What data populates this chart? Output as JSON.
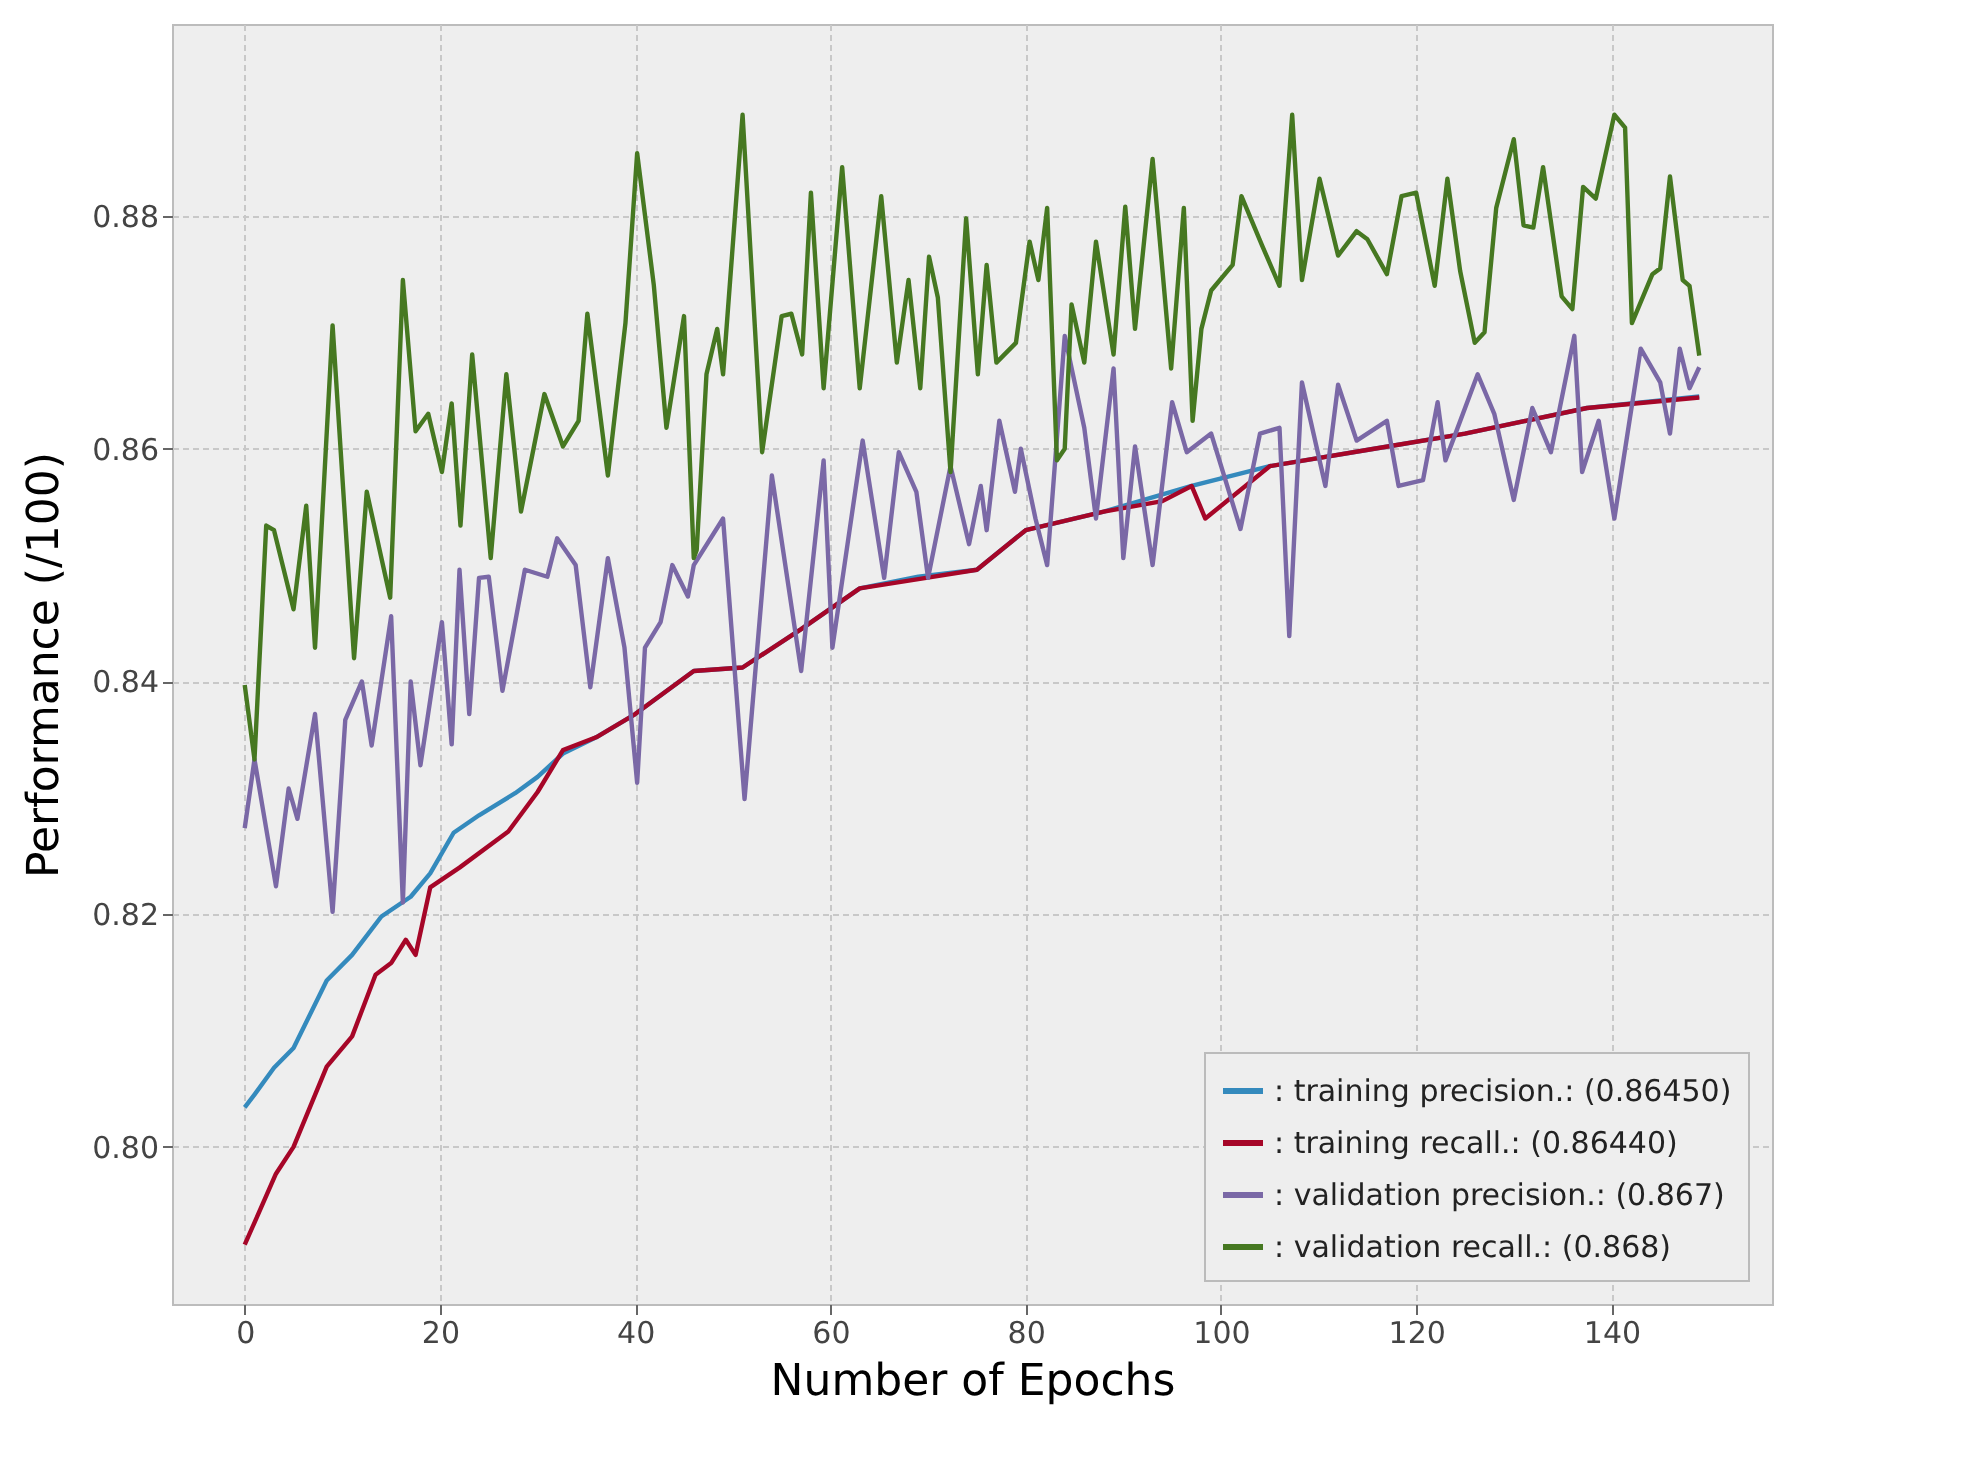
{
  "chart_data": {
    "type": "line",
    "xlabel": "Number of Epochs",
    "ylabel": "Performance (/100)",
    "xlim": [
      -7.45,
      156.45
    ],
    "ylim": [
      0.7865,
      0.8965
    ],
    "xticks": [
      0,
      20,
      40,
      60,
      80,
      100,
      120,
      140
    ],
    "yticks": [
      {
        "value": 0.8,
        "label": "0.80"
      },
      {
        "value": 0.82,
        "label": "0.82"
      },
      {
        "value": 0.84,
        "label": "0.84"
      },
      {
        "value": 0.86,
        "label": "0.86"
      },
      {
        "value": 0.88,
        "label": "0.88"
      }
    ],
    "grid": true,
    "legend": "bottom right",
    "marker": "none",
    "line_style": "solid",
    "series": [
      {
        "name": ": training precision.: (0.86450)",
        "color": "#348abd",
        "x": [
          0,
          1,
          3,
          5,
          8.4,
          11,
          14,
          17,
          19,
          21.4,
          24,
          27.7,
          30,
          32.6,
          36,
          40,
          46,
          51,
          57,
          63,
          69,
          75,
          80,
          88,
          97,
          105,
          115.7,
          125,
          137.5,
          149
        ],
        "values": [
          0.8034,
          0.8045,
          0.8068,
          0.8085,
          0.8143,
          0.8165,
          0.8198,
          0.8215,
          0.8235,
          0.827,
          0.8285,
          0.8304,
          0.8318,
          0.8338,
          0.8352,
          0.8372,
          0.8409,
          0.8412,
          0.8445,
          0.848,
          0.849,
          0.8496,
          0.853,
          0.8546,
          0.8568,
          0.8585,
          0.86,
          0.8613,
          0.8635,
          0.8645
        ]
      },
      {
        "name": ": training recall.: (0.86440)",
        "color": "#a60628",
        "x": [
          0,
          1,
          3.2,
          5,
          8.4,
          11,
          13.4,
          15,
          16.5,
          17.5,
          19,
          22,
          27,
          30,
          32.6,
          36,
          40,
          46,
          51,
          57,
          63,
          69,
          75,
          80,
          88,
          94,
          97,
          98.4,
          105,
          115.7,
          125,
          137.5,
          149
        ],
        "values": [
          0.7916,
          0.7935,
          0.7977,
          0.8,
          0.8069,
          0.8095,
          0.8148,
          0.8158,
          0.8178,
          0.8165,
          0.8223,
          0.824,
          0.8271,
          0.8305,
          0.8341,
          0.8352,
          0.8372,
          0.8409,
          0.8412,
          0.8445,
          0.848,
          0.8488,
          0.8496,
          0.853,
          0.8546,
          0.8555,
          0.8568,
          0.854,
          0.8585,
          0.86,
          0.8613,
          0.8635,
          0.8644
        ]
      },
      {
        "name": ": validation precision.: (0.867)",
        "color": "#7a68a6",
        "x": [
          0,
          1,
          3.2,
          4.5,
          5.4,
          7.2,
          9,
          10.3,
          12,
          13,
          15,
          16.2,
          17,
          18,
          20.2,
          21.2,
          22,
          23,
          24,
          25,
          26.4,
          28.7,
          31,
          32,
          33.9,
          35.4,
          37.2,
          38.9,
          40.2,
          41,
          42.6,
          43.8,
          45.4,
          46,
          49,
          51.2,
          54,
          57,
          59.3,
          60.2,
          63.3,
          65.5,
          67,
          68.8,
          70,
          72.3,
          74.2,
          75.4,
          76,
          77.3,
          78.9,
          79.5,
          81,
          82.2,
          84,
          86,
          87.2,
          89,
          90,
          91.2,
          93,
          95,
          96.5,
          99,
          102,
          104,
          106,
          107,
          108.3,
          110.7,
          112,
          113.9,
          117,
          118.2,
          120.7,
          122.2,
          123,
          126.3,
          128,
          130,
          131.9,
          133.8,
          136.2,
          137,
          138.7,
          140.3,
          143,
          145,
          146,
          147,
          148,
          149
        ],
        "values": [
          0.8274,
          0.8333,
          0.8224,
          0.8308,
          0.8282,
          0.8372,
          0.8202,
          0.8367,
          0.84,
          0.8345,
          0.8456,
          0.821,
          0.84,
          0.8328,
          0.8451,
          0.8346,
          0.8496,
          0.8372,
          0.8489,
          0.849,
          0.8392,
          0.8496,
          0.849,
          0.8523,
          0.85,
          0.8395,
          0.8506,
          0.8429,
          0.8313,
          0.8429,
          0.8451,
          0.85,
          0.8473,
          0.85,
          0.854,
          0.8299,
          0.8577,
          0.8409,
          0.859,
          0.8429,
          0.8607,
          0.8489,
          0.8597,
          0.8563,
          0.8489,
          0.8585,
          0.8518,
          0.8568,
          0.853,
          0.8624,
          0.8563,
          0.86,
          0.854,
          0.85,
          0.8697,
          0.8618,
          0.854,
          0.8669,
          0.8506,
          0.8602,
          0.85,
          0.864,
          0.8597,
          0.8613,
          0.8531,
          0.8613,
          0.8618,
          0.8439,
          0.8657,
          0.8568,
          0.8655,
          0.8607,
          0.8624,
          0.8568,
          0.8573,
          0.864,
          0.859,
          0.8664,
          0.863,
          0.8556,
          0.8635,
          0.8597,
          0.8697,
          0.858,
          0.8624,
          0.854,
          0.8686,
          0.8657,
          0.8613,
          0.8686,
          0.8652,
          0.867
        ]
      },
      {
        "name": ": validation recall.: (0.868)",
        "color": "#467821",
        "x": [
          0,
          1,
          2.2,
          3,
          5,
          6.3,
          7.2,
          9,
          11.2,
          12.5,
          14.9,
          16.2,
          17.5,
          18.8,
          20.2,
          21.2,
          22.1,
          23.3,
          25.2,
          26.8,
          28.3,
          30.7,
          32.6,
          34.2,
          35.1,
          37.2,
          39,
          40.2,
          41.9,
          43.2,
          45,
          46,
          46.3,
          47.3,
          48.4,
          49,
          51,
          53,
          55,
          56,
          57.1,
          58,
          59.3,
          61.2,
          63,
          65.2,
          66.8,
          68,
          69.2,
          70.1,
          71,
          72.3,
          73.9,
          75.1,
          76,
          77,
          79,
          80.4,
          81.3,
          82.2,
          83.2,
          84,
          84.7,
          86,
          87.2,
          89,
          90.2,
          91.2,
          93,
          94.9,
          96.2,
          97.1,
          98,
          99,
          101.2,
          102.1,
          104.2,
          106,
          107.3,
          108.3,
          110.1,
          112,
          113.9,
          115,
          117,
          118.5,
          120,
          121.9,
          123.2,
          124.5,
          126,
          127,
          128.2,
          130,
          131,
          132,
          133,
          134.9,
          136,
          137.1,
          138.4,
          140.3,
          141.4,
          142.1,
          144.2,
          145,
          146,
          147.3,
          148,
          149
        ],
        "values": [
          0.8397,
          0.8333,
          0.8534,
          0.853,
          0.8462,
          0.8551,
          0.8429,
          0.8706,
          0.842,
          0.8563,
          0.8472,
          0.8745,
          0.8615,
          0.863,
          0.858,
          0.8639,
          0.8534,
          0.8681,
          0.8506,
          0.8664,
          0.8546,
          0.8647,
          0.8602,
          0.8624,
          0.8716,
          0.8577,
          0.8708,
          0.8854,
          0.8741,
          0.8618,
          0.8714,
          0.8506,
          0.8513,
          0.8664,
          0.8703,
          0.8664,
          0.8887,
          0.8597,
          0.8714,
          0.8716,
          0.8681,
          0.882,
          0.8652,
          0.8842,
          0.8652,
          0.8817,
          0.8674,
          0.8745,
          0.8652,
          0.8765,
          0.873,
          0.858,
          0.8798,
          0.8664,
          0.8758,
          0.8674,
          0.8691,
          0.8778,
          0.8745,
          0.8807,
          0.859,
          0.86,
          0.8724,
          0.8674,
          0.8778,
          0.8681,
          0.8808,
          0.8703,
          0.8849,
          0.8669,
          0.8807,
          0.8624,
          0.8703,
          0.8736,
          0.8758,
          0.8817,
          0.8775,
          0.874,
          0.8887,
          0.8745,
          0.8832,
          0.8766,
          0.8787,
          0.878,
          0.875,
          0.8817,
          0.882,
          0.874,
          0.8832,
          0.8753,
          0.8691,
          0.87,
          0.8807,
          0.8866,
          0.8792,
          0.879,
          0.8842,
          0.8731,
          0.872,
          0.8825,
          0.8815,
          0.8887,
          0.8876,
          0.8708,
          0.875,
          0.8755,
          0.8834,
          0.8745,
          0.874,
          0.868
        ]
      }
    ]
  }
}
